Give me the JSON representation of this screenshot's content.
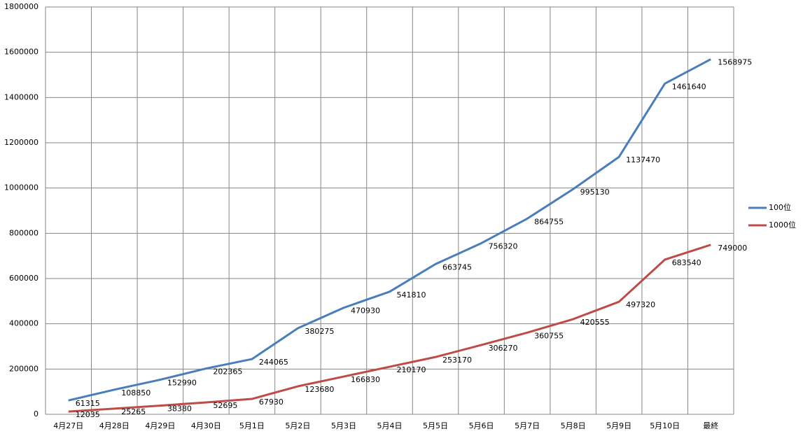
{
  "chart_data": {
    "type": "line",
    "categories": [
      "4月27日",
      "4月28日",
      "4月29日",
      "4月30日",
      "5月1日",
      "5月2日",
      "5月3日",
      "5月4日",
      "5月5日",
      "5月6日",
      "5月7日",
      "5月8日",
      "5月9日",
      "5月10日",
      "最終"
    ],
    "series": [
      {
        "name": "100位",
        "color": "#4a7ebb",
        "values": [
          61315,
          108850,
          152990,
          202365,
          244065,
          380275,
          470930,
          541810,
          663745,
          756320,
          864755,
          995130,
          1137470,
          1461640,
          1568975
        ]
      },
      {
        "name": "1000位",
        "color": "#be4b48",
        "values": [
          12035,
          25265,
          38380,
          52695,
          67930,
          123680,
          166830,
          210170,
          253170,
          306270,
          360755,
          420555,
          497320,
          683540,
          749000
        ]
      }
    ],
    "ylim": [
      0,
      1800000
    ],
    "yticks": [
      0,
      200000,
      400000,
      600000,
      800000,
      1000000,
      1200000,
      1400000,
      1600000,
      1800000
    ],
    "grid": true,
    "legend": "right",
    "data_labels": true
  }
}
